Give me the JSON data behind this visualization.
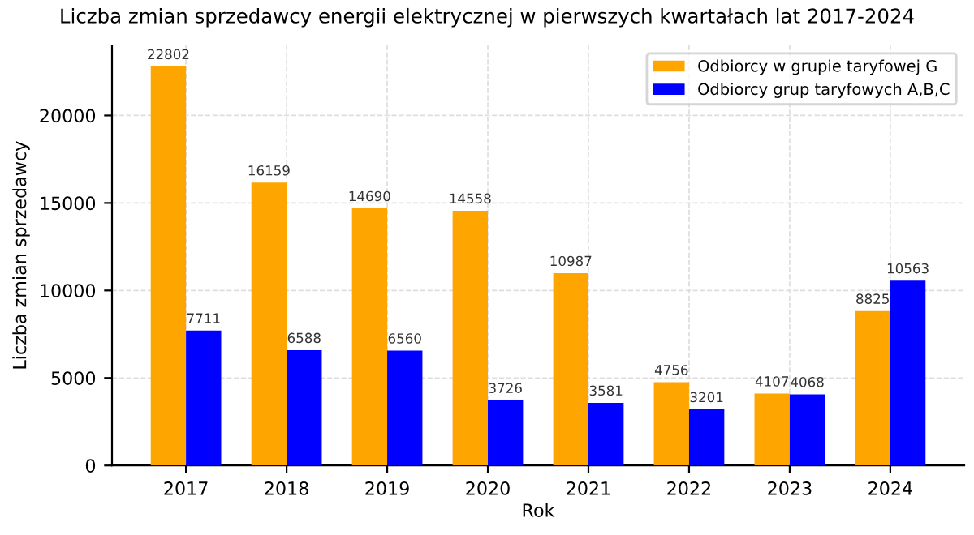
{
  "chart_data": {
    "type": "bar",
    "title": "Liczba zmian sprzedawcy energii elektrycznej w pierwszych kwartałach lat 2017-2024",
    "xlabel": "Rok",
    "ylabel": "Liczba zmian sprzedawcy",
    "categories": [
      "2017",
      "2018",
      "2019",
      "2020",
      "2021",
      "2022",
      "2023",
      "2024"
    ],
    "series": [
      {
        "name": "Odbiorcy w grupie taryfowej G",
        "color": "#ffa500",
        "values": [
          22802,
          16159,
          14690,
          14558,
          10987,
          4756,
          4107,
          8825
        ]
      },
      {
        "name": "Odbiorcy grup taryfowych A,B,C",
        "color": "#0000ff",
        "values": [
          7711,
          6588,
          6560,
          3726,
          3581,
          3201,
          4068,
          10563
        ]
      }
    ],
    "ylim": [
      0,
      24000
    ],
    "yticks": [
      0,
      5000,
      10000,
      15000,
      20000
    ],
    "grid": true,
    "legend": "top right",
    "data_labels": true
  }
}
